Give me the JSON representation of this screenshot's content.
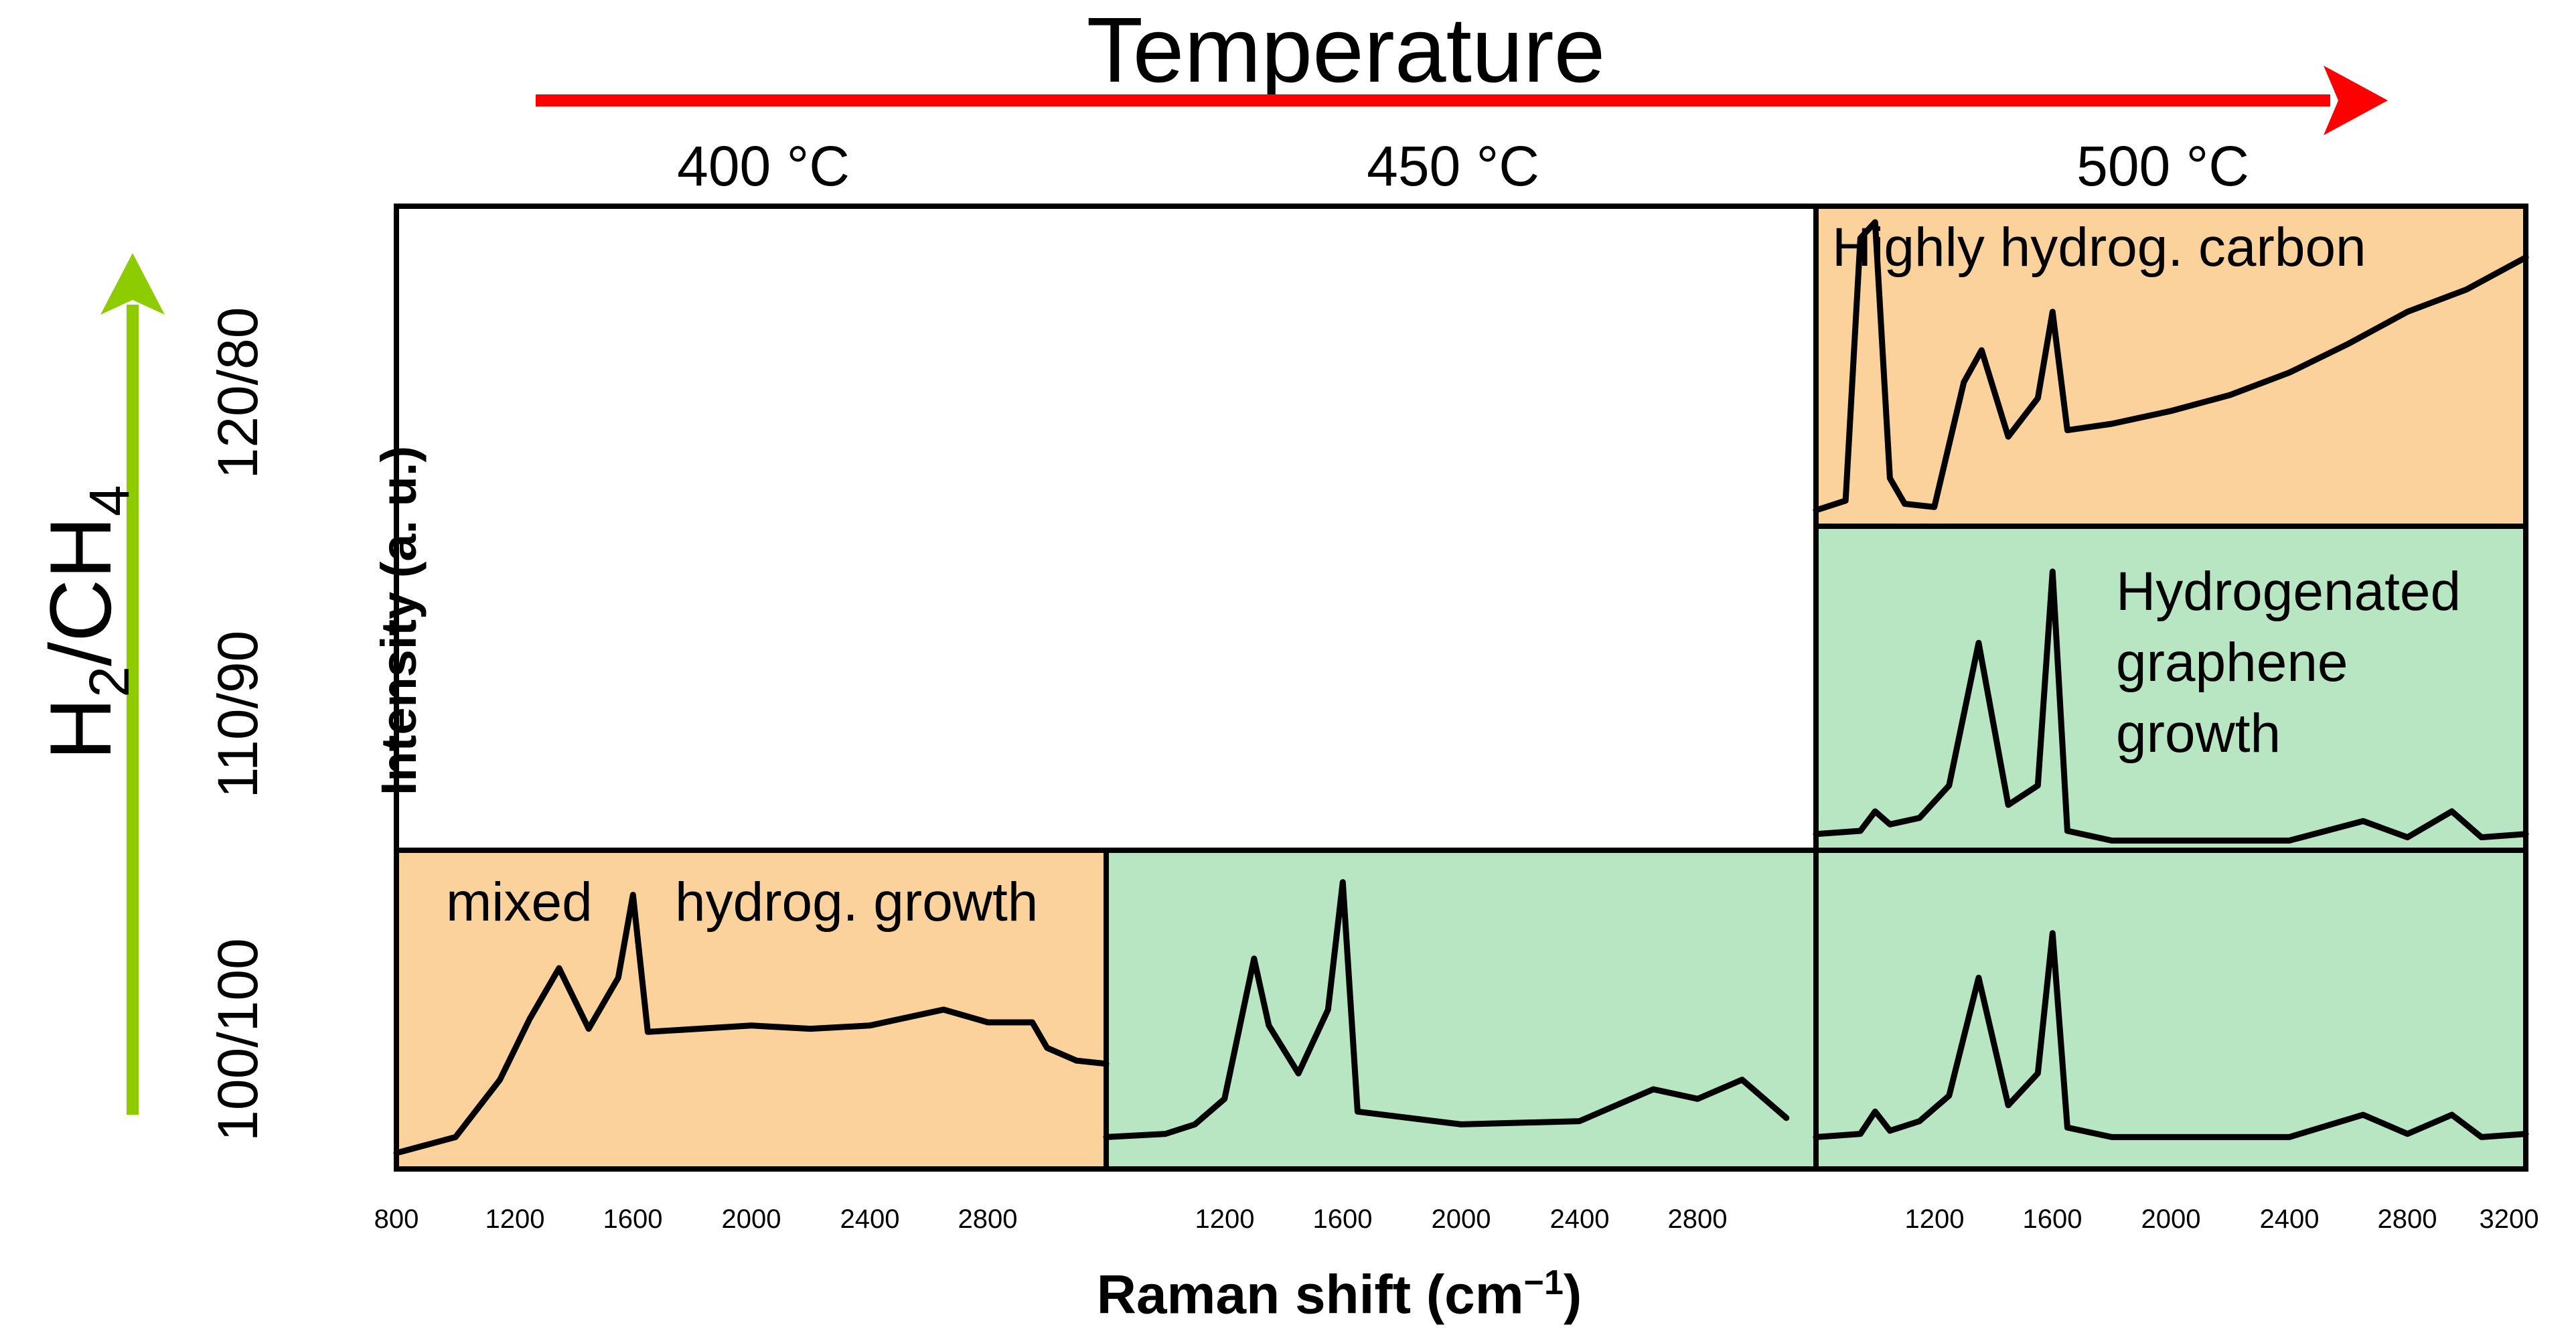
{
  "figure": {
    "title": "Temperature",
    "temperatures": [
      "400 °C",
      "450 °C",
      "500 °C"
    ],
    "ratios": [
      "120/80",
      "110/90",
      "100/100"
    ],
    "ratio_axis_label": {
      "main": "H",
      "sub1": "2",
      "mid": "/CH",
      "sub2": "4"
    },
    "y_label": "Intensity (a. u.)",
    "x_label": {
      "main": "Raman shift (cm",
      "sup": "−1",
      "close": ")"
    },
    "annotations": {
      "mixed": "mixed",
      "hydrog_growth": "hydrog. growth",
      "highly_hydrog": "Highly hydrog. carbon",
      "hydrogenated_1": "Hydrogenated",
      "hydrogenated_2": "graphene",
      "hydrogenated_3": "growth"
    },
    "colors": {
      "orange_bg": "#fcd29c",
      "green_bg": "#b8e6c3",
      "red_arrow": "#ff0000",
      "green_arrow": "#8ccc00",
      "line": "#000000"
    },
    "x_ticks": {
      "col1": [
        "800",
        "1200",
        "1600",
        "2000",
        "2400",
        "2800"
      ],
      "col2": [
        "1200",
        "1600",
        "2000",
        "2400",
        "2800"
      ],
      "col3": [
        "1200",
        "1600",
        "2000",
        "2400",
        "2800",
        "3200"
      ]
    }
  },
  "chart_data": {
    "type": "line",
    "title": "Temperature",
    "xlabel": "Raman shift (cm−1)",
    "ylabel": "Intensity (a. u.)",
    "xlim": [
      800,
      3200
    ],
    "panels": [
      {
        "temperature": "500 °C",
        "ratio": "120/80",
        "background": "orange",
        "label": "Highly hydrog. carbon",
        "peaks": [
          {
            "x": 1360,
            "y": 0.55,
            "w": 45
          },
          {
            "x": 1600,
            "y": 0.67,
            "w": 22
          }
        ],
        "x": [
          800,
          900,
          950,
          1000,
          1050,
          1100,
          1200,
          1300,
          1360,
          1450,
          1550,
          1600,
          1650,
          1800,
          2000,
          2200,
          2400,
          2600,
          2800,
          3000,
          3200
        ],
        "y": [
          0.05,
          0.08,
          0.9,
          0.95,
          0.15,
          0.07,
          0.06,
          0.45,
          0.55,
          0.28,
          0.4,
          0.67,
          0.3,
          0.32,
          0.36,
          0.41,
          0.48,
          0.57,
          0.67,
          0.74,
          0.84
        ]
      },
      {
        "temperature": "500 °C",
        "ratio": "110/90",
        "background": "green",
        "label": "Hydrogenated graphene growth",
        "x": [
          800,
          950,
          1000,
          1050,
          1150,
          1250,
          1350,
          1450,
          1550,
          1600,
          1650,
          1800,
          2000,
          2400,
          2650,
          2800,
          2950,
          3050,
          3200
        ],
        "y": [
          0.05,
          0.06,
          0.12,
          0.08,
          0.1,
          0.2,
          0.64,
          0.14,
          0.2,
          0.86,
          0.06,
          0.03,
          0.03,
          0.03,
          0.09,
          0.04,
          0.12,
          0.04,
          0.05
        ]
      },
      {
        "temperature": "400 °C",
        "ratio": "100/100",
        "background": "orange",
        "label": "mixed hydrog. growth",
        "x": [
          800,
          1000,
          1150,
          1250,
          1350,
          1450,
          1550,
          1600,
          1650,
          2000,
          2200,
          2400,
          2650,
          2800,
          2950,
          3000,
          3100,
          3200
        ],
        "y": [
          0.05,
          0.1,
          0.28,
          0.47,
          0.63,
          0.44,
          0.6,
          0.86,
          0.43,
          0.45,
          0.44,
          0.45,
          0.5,
          0.46,
          0.46,
          0.38,
          0.34,
          0.33
        ]
      },
      {
        "temperature": "450 °C",
        "ratio": "100/100",
        "background": "green",
        "label": "",
        "x": [
          800,
          1000,
          1100,
          1200,
          1300,
          1350,
          1450,
          1550,
          1600,
          1650,
          2000,
          2400,
          2650,
          2800,
          2950,
          3100
        ],
        "y": [
          0.1,
          0.11,
          0.14,
          0.22,
          0.66,
          0.45,
          0.3,
          0.5,
          0.9,
          0.18,
          0.14,
          0.15,
          0.25,
          0.22,
          0.28,
          0.16
        ]
      },
      {
        "temperature": "500 °C",
        "ratio": "100/100",
        "background": "green",
        "label": "",
        "x": [
          800,
          950,
          1000,
          1050,
          1150,
          1250,
          1350,
          1450,
          1550,
          1600,
          1650,
          1800,
          2000,
          2400,
          2650,
          2800,
          2950,
          3050,
          3200
        ],
        "y": [
          0.1,
          0.11,
          0.18,
          0.12,
          0.15,
          0.23,
          0.6,
          0.2,
          0.3,
          0.74,
          0.13,
          0.1,
          0.1,
          0.1,
          0.17,
          0.11,
          0.17,
          0.1,
          0.11
        ]
      }
    ]
  }
}
